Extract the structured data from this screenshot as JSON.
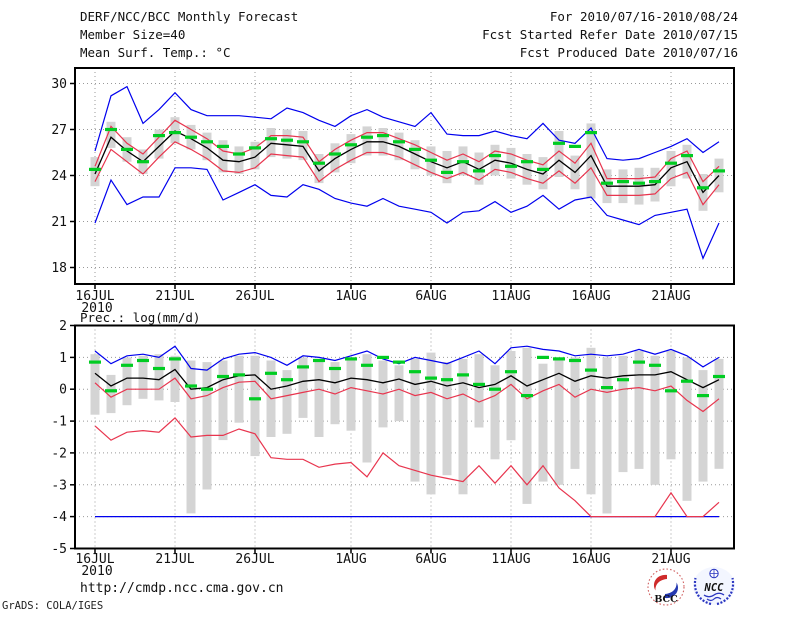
{
  "header": {
    "left": [
      "DERF/NCC/BCC Monthly Forecast",
      "Member Size=40",
      "Mean Surf. Temp.: °C"
    ],
    "right": [
      "For 2010/07/16-2010/08/24",
      "Fcst Started Refer Date 2010/07/15",
      "Fcst Produced Date 2010/07/16"
    ]
  },
  "footer": {
    "url": "http://cmdp.ncc.cma.gov.cn",
    "credit": "GrADS: COLA/IGES"
  },
  "logos": {
    "bcc_label": "BCC",
    "ncc_label": "NCC"
  },
  "colors": {
    "line_blue": "#0000ee",
    "line_red": "#e8354e",
    "line_black": "#000000",
    "marker_green": "#00cc22",
    "bar_gray": "#d4d4d4",
    "grid_gray": "#999999",
    "frame_black": "#000000"
  },
  "chart_data": [
    {
      "type": "line",
      "title": "Mean Surf. Temp.: °C",
      "ylabel": "°C",
      "ylim": [
        16.9,
        31.0
      ],
      "yticks": [
        30,
        27,
        24,
        21,
        18
      ],
      "n_days": 40,
      "x_ticks": [
        {
          "day": 0,
          "label": "16JUL",
          "sublabel": "2010"
        },
        {
          "day": 5,
          "label": "21JUL"
        },
        {
          "day": 10,
          "label": "26JUL"
        },
        {
          "day": 16,
          "label": "1AUG"
        },
        {
          "day": 21,
          "label": "6AUG"
        },
        {
          "day": 26,
          "label": "11AUG"
        },
        {
          "day": 31,
          "label": "16AUG"
        },
        {
          "day": 36,
          "label": "21AUG"
        }
      ],
      "series": [
        {
          "name": "blue-upper-envelope",
          "color": "#0000ee",
          "width": 1.2,
          "values": [
            25.6,
            29.2,
            29.8,
            27.4,
            28.3,
            29.4,
            28.3,
            27.9,
            27.9,
            27.9,
            27.8,
            27.7,
            28.4,
            28.1,
            27.6,
            27.2,
            27.9,
            28.3,
            27.8,
            27.5,
            27.2,
            28.1,
            26.7,
            26.6,
            26.6,
            26.9,
            26.6,
            26.4,
            27.4,
            26.3,
            26.1,
            27.1,
            25.1,
            25.0,
            25.1,
            25.5,
            25.9,
            26.4,
            25.5,
            26.2
          ]
        },
        {
          "name": "blue-lower-envelope",
          "color": "#0000ee",
          "width": 1.2,
          "values": [
            20.9,
            23.7,
            22.1,
            22.6,
            22.6,
            24.5,
            24.5,
            24.4,
            22.4,
            22.9,
            23.4,
            22.7,
            22.6,
            23.4,
            23.1,
            22.5,
            22.2,
            22.0,
            22.5,
            22.0,
            21.8,
            21.6,
            20.9,
            21.6,
            21.7,
            22.3,
            21.6,
            22.0,
            22.7,
            21.8,
            22.4,
            22.6,
            21.4,
            21.1,
            20.8,
            21.4,
            21.6,
            21.8,
            18.6,
            20.9
          ]
        },
        {
          "name": "red-upper-line",
          "color": "#e8354e",
          "width": 1.2,
          "values": [
            24.6,
            27.2,
            26.1,
            25.4,
            26.5,
            27.6,
            27.0,
            26.4,
            25.6,
            25.4,
            25.8,
            26.6,
            26.6,
            26.5,
            24.9,
            25.7,
            26.3,
            26.8,
            26.8,
            26.4,
            26.0,
            25.5,
            25.0,
            25.4,
            24.9,
            25.6,
            25.4,
            25.0,
            24.7,
            25.6,
            24.8,
            26.1,
            23.8,
            23.8,
            23.8,
            23.9,
            25.1,
            25.6,
            23.6,
            24.6
          ]
        },
        {
          "name": "red-lower-line",
          "color": "#e8354e",
          "width": 1.2,
          "values": [
            23.6,
            25.7,
            24.9,
            24.1,
            25.2,
            26.2,
            25.7,
            25.1,
            24.3,
            24.2,
            24.5,
            25.4,
            25.3,
            25.2,
            23.6,
            24.4,
            25.0,
            25.5,
            25.5,
            25.2,
            24.7,
            24.2,
            23.8,
            24.2,
            23.7,
            24.4,
            24.2,
            23.8,
            23.5,
            24.3,
            23.5,
            24.5,
            22.7,
            22.7,
            22.7,
            22.8,
            23.8,
            24.2,
            22.1,
            23.4
          ]
        },
        {
          "name": "black-ensemble-mean",
          "color": "#000000",
          "width": 1.3,
          "values": [
            24.1,
            26.5,
            25.6,
            24.9,
            25.9,
            26.9,
            26.4,
            25.8,
            25.0,
            24.9,
            25.2,
            26.1,
            26.0,
            25.9,
            24.3,
            25.1,
            25.7,
            26.2,
            26.2,
            25.9,
            25.4,
            24.9,
            24.5,
            24.9,
            24.4,
            25.0,
            24.8,
            24.4,
            24.1,
            25.0,
            24.2,
            25.3,
            23.3,
            23.3,
            23.3,
            23.4,
            24.5,
            24.9,
            22.9,
            24.0
          ]
        }
      ],
      "green_dashes": {
        "name": "green-dash-markers",
        "color": "#00cc22",
        "values": [
          24.4,
          27.0,
          25.7,
          24.9,
          26.6,
          26.8,
          26.5,
          26.2,
          25.9,
          25.4,
          25.8,
          26.4,
          26.3,
          26.2,
          24.8,
          25.4,
          26.0,
          26.5,
          26.6,
          26.2,
          25.7,
          25.0,
          24.2,
          24.9,
          24.3,
          25.3,
          24.6,
          24.9,
          24.4,
          26.1,
          25.9,
          26.8,
          23.5,
          23.6,
          23.5,
          23.6,
          24.8,
          25.3,
          23.2,
          24.3
        ]
      },
      "bars": [
        [
          23.3,
          25.2
        ],
        [
          25.8,
          27.5
        ],
        [
          24.9,
          26.5
        ],
        [
          24.1,
          25.7
        ],
        [
          25.1,
          27.0
        ],
        [
          26.1,
          27.8
        ],
        [
          25.7,
          27.3
        ],
        [
          25.0,
          26.8
        ],
        [
          24.2,
          26.3
        ],
        [
          24.1,
          25.9
        ],
        [
          24.4,
          26.2
        ],
        [
          25.2,
          27.1
        ],
        [
          25.1,
          27.0
        ],
        [
          25.0,
          26.9
        ],
        [
          23.5,
          25.4
        ],
        [
          24.2,
          26.1
        ],
        [
          24.8,
          26.7
        ],
        [
          25.3,
          27.2
        ],
        [
          25.3,
          27.1
        ],
        [
          25.0,
          26.8
        ],
        [
          24.4,
          26.3
        ],
        [
          24.0,
          25.9
        ],
        [
          23.5,
          25.6
        ],
        [
          24.0,
          25.9
        ],
        [
          23.4,
          25.5
        ],
        [
          24.0,
          26.0
        ],
        [
          23.8,
          25.8
        ],
        [
          23.4,
          25.4
        ],
        [
          23.1,
          25.2
        ],
        [
          23.9,
          26.9
        ],
        [
          23.1,
          25.3
        ],
        [
          22.5,
          27.4
        ],
        [
          22.2,
          24.4
        ],
        [
          22.2,
          24.4
        ],
        [
          22.1,
          24.5
        ],
        [
          22.3,
          24.5
        ],
        [
          23.3,
          25.6
        ],
        [
          23.8,
          26.0
        ],
        [
          21.7,
          24.1
        ],
        [
          22.9,
          25.1
        ]
      ]
    },
    {
      "type": "line",
      "title": "Prec.: log(mm/d)",
      "ylabel": "log(mm/d)",
      "ylim": [
        -5,
        2
      ],
      "yticks": [
        2,
        1,
        0,
        -1,
        -2,
        -3,
        -4,
        -5
      ],
      "n_days": 40,
      "x_ticks": [
        {
          "day": 0,
          "label": "16JUL",
          "sublabel": "2010"
        },
        {
          "day": 5,
          "label": "21JUL"
        },
        {
          "day": 10,
          "label": "26JUL"
        },
        {
          "day": 16,
          "label": "1AUG"
        },
        {
          "day": 21,
          "label": "6AUG"
        },
        {
          "day": 26,
          "label": "11AUG"
        },
        {
          "day": 31,
          "label": "16AUG"
        },
        {
          "day": 36,
          "label": "21AUG"
        }
      ],
      "series": [
        {
          "name": "blue-upper-envelope",
          "color": "#0000ee",
          "width": 1.2,
          "values": [
            1.2,
            0.8,
            1.05,
            1.1,
            1.0,
            1.35,
            0.65,
            0.6,
            0.95,
            1.1,
            1.15,
            1.0,
            0.75,
            1.05,
            1.0,
            0.9,
            1.05,
            1.2,
            0.95,
            0.8,
            1.0,
            0.9,
            0.8,
            1.0,
            1.2,
            0.8,
            1.3,
            1.35,
            1.25,
            1.2,
            1.05,
            1.1,
            1.05,
            1.1,
            1.25,
            1.1,
            1.25,
            1.05,
            0.7,
            1.0
          ]
        },
        {
          "name": "blue-lower-envelope-clamped",
          "color": "#0000ee",
          "width": 1.2,
          "values": [
            -4,
            -4,
            -4,
            -4,
            -4,
            -4,
            -4,
            -4,
            -4,
            -4,
            -4,
            -4,
            -4,
            -4,
            -4,
            -4,
            -4,
            -4,
            -4,
            -4,
            -4,
            -4,
            -4,
            -4,
            -4,
            -4,
            -4,
            -4,
            -4,
            -4,
            -4,
            -4,
            -4,
            -4,
            -4,
            -4,
            -4,
            -4,
            -4,
            -4
          ]
        },
        {
          "name": "red-upper-line",
          "color": "#e8354e",
          "width": 1.2,
          "values": [
            0.2,
            -0.25,
            0.0,
            0.0,
            0.0,
            0.35,
            -0.3,
            -0.2,
            0.05,
            0.22,
            0.25,
            -0.3,
            -0.2,
            -0.1,
            0.0,
            -0.15,
            0.05,
            -0.05,
            -0.15,
            0.0,
            -0.2,
            -0.1,
            -0.3,
            -0.15,
            -0.4,
            -0.2,
            0.15,
            -0.3,
            -0.05,
            0.15,
            -0.25,
            0.0,
            -0.1,
            0.0,
            0.05,
            -0.05,
            0.1,
            -0.35,
            -0.7,
            -0.3
          ]
        },
        {
          "name": "red-lower-line",
          "color": "#e8354e",
          "width": 1.2,
          "values": [
            -1.15,
            -1.6,
            -1.35,
            -1.3,
            -1.35,
            -0.9,
            -1.5,
            -1.45,
            -1.45,
            -1.25,
            -1.4,
            -2.15,
            -2.2,
            -2.2,
            -2.45,
            -2.35,
            -2.3,
            -2.75,
            -2.0,
            -2.4,
            -2.55,
            -2.7,
            -2.8,
            -2.9,
            -2.4,
            -2.95,
            -2.4,
            -3.0,
            -2.4,
            -3.1,
            -3.5,
            -4.0,
            -4.0,
            -4.0,
            -4.0,
            -4.0,
            -3.25,
            -4.0,
            -4.0,
            -3.55
          ]
        },
        {
          "name": "black-ensemble-mean",
          "color": "#000000",
          "width": 1.3,
          "values": [
            0.5,
            0.1,
            0.35,
            0.35,
            0.3,
            0.62,
            0.0,
            0.05,
            0.3,
            0.42,
            0.45,
            0.0,
            0.1,
            0.25,
            0.3,
            0.2,
            0.35,
            0.3,
            0.2,
            0.32,
            0.15,
            0.25,
            0.1,
            0.2,
            0.05,
            0.15,
            0.42,
            0.1,
            0.3,
            0.5,
            0.25,
            0.42,
            0.35,
            0.42,
            0.45,
            0.45,
            0.55,
            0.3,
            0.05,
            0.3
          ]
        }
      ],
      "green_dashes": {
        "name": "green-dash-markers",
        "color": "#00cc22",
        "values": [
          0.85,
          -0.05,
          0.75,
          0.9,
          0.65,
          0.95,
          0.1,
          0.0,
          0.4,
          0.45,
          -0.3,
          0.5,
          0.3,
          0.7,
          0.9,
          0.65,
          0.95,
          0.75,
          1.0,
          0.85,
          0.55,
          0.35,
          0.3,
          0.45,
          0.15,
          0.0,
          0.55,
          -0.2,
          1.0,
          0.95,
          0.9,
          0.6,
          0.05,
          0.3,
          0.85,
          0.75,
          -0.05,
          0.25,
          -0.2,
          0.4
        ]
      },
      "bars": [
        [
          -0.8,
          1.1
        ],
        [
          -0.75,
          0.45
        ],
        [
          -0.5,
          1.0
        ],
        [
          -0.3,
          1.05
        ],
        [
          -0.35,
          1.1
        ],
        [
          -0.4,
          1.05
        ],
        [
          -3.9,
          0.9
        ],
        [
          -3.15,
          0.85
        ],
        [
          -1.6,
          0.9
        ],
        [
          -1.05,
          1.05
        ],
        [
          -2.1,
          1.05
        ],
        [
          -1.5,
          0.9
        ],
        [
          -1.4,
          0.6
        ],
        [
          -0.9,
          1.0
        ],
        [
          -1.5,
          0.95
        ],
        [
          -1.1,
          0.85
        ],
        [
          -1.3,
          1.0
        ],
        [
          -2.3,
          1.1
        ],
        [
          -1.2,
          0.9
        ],
        [
          -1.0,
          0.75
        ],
        [
          -2.9,
          0.95
        ],
        [
          -3.3,
          1.15
        ],
        [
          -2.7,
          0.85
        ],
        [
          -3.3,
          0.95
        ],
        [
          -1.2,
          1.1
        ],
        [
          -2.2,
          0.75
        ],
        [
          -1.6,
          1.2
        ],
        [
          -3.6,
          1.3
        ],
        [
          -2.9,
          0.8
        ],
        [
          -3.0,
          1.0
        ],
        [
          -2.5,
          1.0
        ],
        [
          -3.3,
          1.3
        ],
        [
          -3.9,
          1.0
        ],
        [
          -2.6,
          1.05
        ],
        [
          -2.5,
          1.2
        ],
        [
          -3.0,
          1.05
        ],
        [
          -2.2,
          1.2
        ],
        [
          -3.5,
          1.0
        ],
        [
          -2.9,
          0.6
        ],
        [
          -2.5,
          0.95
        ]
      ]
    }
  ]
}
